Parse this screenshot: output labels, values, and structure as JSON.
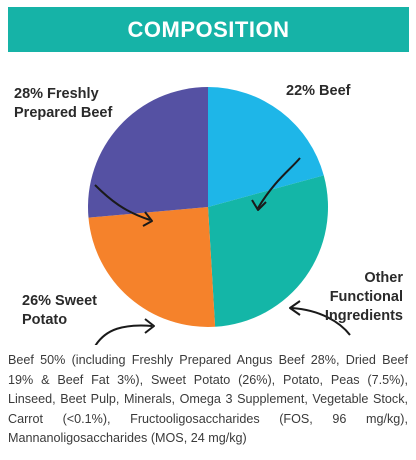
{
  "header": {
    "title": "COMPOSITION"
  },
  "chart_data": {
    "type": "pie",
    "title": "COMPOSITION",
    "slices": [
      {
        "label": "22% Beef",
        "value": 22,
        "color": "#1eb6e8"
      },
      {
        "label": "Other Functional Ingredients",
        "value": 30,
        "color": "#14b6a7"
      },
      {
        "label": "26% Sweet Potato",
        "value": 26,
        "color": "#f5822b"
      },
      {
        "label": "28% Freshly Prepared Beef",
        "value": 28,
        "color": "#5551a3"
      }
    ]
  },
  "labels": {
    "beef": "22% Beef",
    "other_1": "Other",
    "other_2": "Functional",
    "other_3": "Ingredients",
    "sweet_1": "26% Sweet",
    "sweet_2": "Potato",
    "fresh_1": "28% Freshly",
    "fresh_2": "Prepared Beef"
  },
  "description": "Beef 50% (including Freshly Prepared Angus Beef 28%, Dried Beef 19% & Beef Fat 3%), Sweet Potato (26%), Potato, Peas (7.5%), Linseed, Beet Pulp, Minerals, Omega 3 Supplement, Vegetable Stock, Carrot (<0.1%), Fructooligosaccharides (FOS, 96 mg/kg), Mannanoligosaccharides (MOS, 24 mg/kg)"
}
